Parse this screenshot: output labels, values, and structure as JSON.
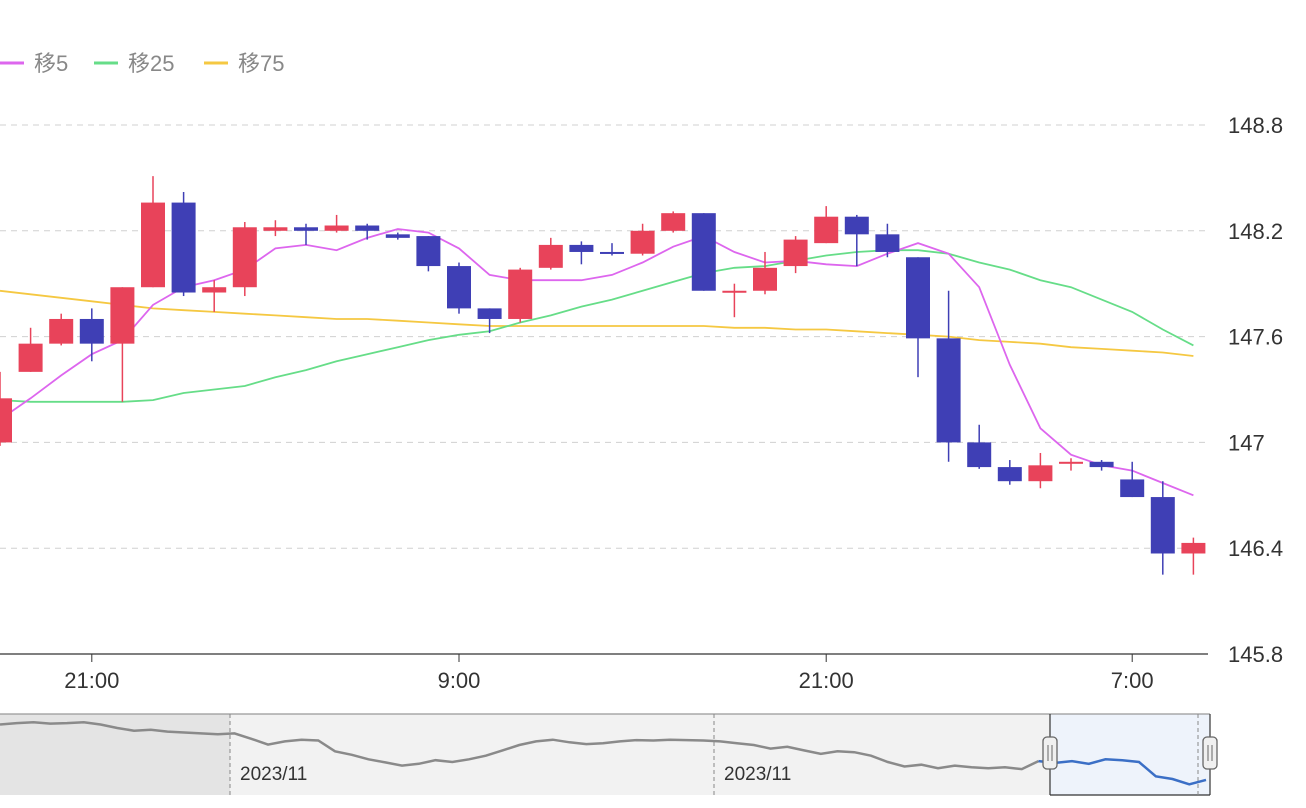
{
  "chart_data": {
    "type": "candlestick",
    "legend": [
      {
        "label": "移5",
        "color": "#dd66ee"
      },
      {
        "label": "移25",
        "color": "#66dd88"
      },
      {
        "label": "移75",
        "color": "#f5c842"
      }
    ],
    "y_ticks": [
      "148.8",
      "148.2",
      "147.6",
      "147",
      "146.4",
      "145.8"
    ],
    "ylim": [
      145.8,
      149.2
    ],
    "x_ticks": [
      {
        "label": "21:00",
        "index": 3
      },
      {
        "label": "9:00",
        "index": 15
      },
      {
        "label": "21:00",
        "index": 27
      },
      {
        "label": "7:00",
        "index": 37
      }
    ],
    "colors": {
      "up": "#e8435a",
      "down": "#3f3fb5",
      "grid": "#d0d0d0"
    },
    "candles": [
      {
        "o": 147.0,
        "h": 147.4,
        "l": 146.98,
        "c": 147.25
      },
      {
        "o": 147.4,
        "h": 147.65,
        "l": 147.4,
        "c": 147.56
      },
      {
        "o": 147.56,
        "h": 147.73,
        "l": 147.55,
        "c": 147.7
      },
      {
        "o": 147.7,
        "h": 147.76,
        "l": 147.46,
        "c": 147.56
      },
      {
        "o": 147.56,
        "h": 147.88,
        "l": 147.23,
        "c": 147.88
      },
      {
        "o": 147.88,
        "h": 148.51,
        "l": 147.88,
        "c": 148.36
      },
      {
        "o": 148.36,
        "h": 148.42,
        "l": 147.83,
        "c": 147.85
      },
      {
        "o": 147.85,
        "h": 147.92,
        "l": 147.74,
        "c": 147.88
      },
      {
        "o": 147.88,
        "h": 148.25,
        "l": 147.83,
        "c": 148.22
      },
      {
        "o": 148.2,
        "h": 148.26,
        "l": 148.17,
        "c": 148.22
      },
      {
        "o": 148.22,
        "h": 148.24,
        "l": 148.12,
        "c": 148.2
      },
      {
        "o": 148.2,
        "h": 148.29,
        "l": 148.19,
        "c": 148.23
      },
      {
        "o": 148.23,
        "h": 148.24,
        "l": 148.15,
        "c": 148.2
      },
      {
        "o": 148.18,
        "h": 148.19,
        "l": 148.15,
        "c": 148.16
      },
      {
        "o": 148.17,
        "h": 148.17,
        "l": 147.97,
        "c": 148.0
      },
      {
        "o": 148.0,
        "h": 148.02,
        "l": 147.73,
        "c": 147.76
      },
      {
        "o": 147.76,
        "h": 147.76,
        "l": 147.62,
        "c": 147.7
      },
      {
        "o": 147.7,
        "h": 147.99,
        "l": 147.68,
        "c": 147.98
      },
      {
        "o": 147.99,
        "h": 148.16,
        "l": 147.98,
        "c": 148.12
      },
      {
        "o": 148.12,
        "h": 148.14,
        "l": 148.01,
        "c": 148.08
      },
      {
        "o": 148.08,
        "h": 148.13,
        "l": 148.06,
        "c": 148.07
      },
      {
        "o": 148.07,
        "h": 148.24,
        "l": 148.06,
        "c": 148.2
      },
      {
        "o": 148.2,
        "h": 148.31,
        "l": 148.19,
        "c": 148.3
      },
      {
        "o": 148.3,
        "h": 148.3,
        "l": 147.86,
        "c": 147.86
      },
      {
        "o": 147.86,
        "h": 147.9,
        "l": 147.71,
        "c": 147.86
      },
      {
        "o": 147.86,
        "h": 148.08,
        "l": 147.84,
        "c": 147.99
      },
      {
        "o": 148.0,
        "h": 148.17,
        "l": 147.96,
        "c": 148.15
      },
      {
        "o": 148.13,
        "h": 148.34,
        "l": 148.13,
        "c": 148.28
      },
      {
        "o": 148.28,
        "h": 148.29,
        "l": 148.0,
        "c": 148.18
      },
      {
        "o": 148.18,
        "h": 148.24,
        "l": 148.05,
        "c": 148.08
      },
      {
        "o": 148.05,
        "h": 148.05,
        "l": 147.37,
        "c": 147.59
      },
      {
        "o": 147.59,
        "h": 147.86,
        "l": 146.89,
        "c": 147.0
      },
      {
        "o": 147.0,
        "h": 147.1,
        "l": 146.85,
        "c": 146.86
      },
      {
        "o": 146.86,
        "h": 146.9,
        "l": 146.76,
        "c": 146.78
      },
      {
        "o": 146.78,
        "h": 146.94,
        "l": 146.74,
        "c": 146.87
      },
      {
        "o": 146.89,
        "h": 146.91,
        "l": 146.84,
        "c": 146.89
      },
      {
        "o": 146.89,
        "h": 146.9,
        "l": 146.84,
        "c": 146.86
      },
      {
        "o": 146.79,
        "h": 146.89,
        "l": 146.69,
        "c": 146.69
      },
      {
        "o": 146.69,
        "h": 146.78,
        "l": 146.25,
        "c": 146.37
      },
      {
        "o": 146.37,
        "h": 146.46,
        "l": 146.25,
        "c": 146.43
      }
    ],
    "ma5": [
      147.13,
      147.25,
      147.38,
      147.5,
      147.58,
      147.78,
      147.88,
      147.92,
      147.98,
      148.1,
      148.12,
      148.09,
      148.16,
      148.21,
      148.19,
      148.1,
      147.95,
      147.92,
      147.92,
      147.92,
      147.95,
      148.02,
      148.11,
      148.17,
      148.08,
      148.02,
      148.03,
      148.01,
      148.0,
      148.07,
      148.13,
      148.07,
      147.88,
      147.44,
      147.08,
      146.93,
      146.87,
      146.84,
      146.77,
      146.7
    ],
    "ma25": [
      147.24,
      147.23,
      147.23,
      147.23,
      147.23,
      147.24,
      147.28,
      147.3,
      147.32,
      147.37,
      147.41,
      147.46,
      147.5,
      147.54,
      147.58,
      147.61,
      147.63,
      147.68,
      147.72,
      147.77,
      147.81,
      147.86,
      147.91,
      147.96,
      147.99,
      148.0,
      148.03,
      148.06,
      148.08,
      148.09,
      148.09,
      148.07,
      148.02,
      147.98,
      147.92,
      147.88,
      147.81,
      147.74,
      147.64,
      147.55
    ],
    "ma75": [
      147.86,
      147.84,
      147.82,
      147.8,
      147.78,
      147.76,
      147.75,
      147.74,
      147.73,
      147.72,
      147.71,
      147.7,
      147.7,
      147.69,
      147.68,
      147.67,
      147.66,
      147.66,
      147.66,
      147.66,
      147.66,
      147.66,
      147.66,
      147.66,
      147.65,
      147.65,
      147.64,
      147.64,
      147.63,
      147.62,
      147.61,
      147.6,
      147.58,
      147.57,
      147.56,
      147.54,
      147.53,
      147.52,
      147.51,
      147.49
    ],
    "navigator": {
      "date_labels": [
        "2023/11",
        "2023/11"
      ],
      "series": [
        148.9,
        148.93,
        148.95,
        148.92,
        148.93,
        148.95,
        148.9,
        148.82,
        148.76,
        148.78,
        148.74,
        148.72,
        148.7,
        148.68,
        148.7,
        148.58,
        148.45,
        148.52,
        148.56,
        148.54,
        148.3,
        148.22,
        148.12,
        148.05,
        147.98,
        148.02,
        148.1,
        148.06,
        148.12,
        148.2,
        148.32,
        148.44,
        148.52,
        148.56,
        148.5,
        148.46,
        148.48,
        148.52,
        148.55,
        148.54,
        148.56,
        148.55,
        148.54,
        148.52,
        148.48,
        148.44,
        148.36,
        148.4,
        148.32,
        148.24,
        148.3,
        148.28,
        148.2,
        148.06,
        147.96,
        148.0,
        147.92,
        147.98,
        147.94,
        147.92,
        147.94,
        147.9,
        148.08,
        148.04,
        148.08,
        148.02,
        148.12,
        148.1,
        148.06,
        147.74,
        147.68,
        147.56,
        147.66
      ]
    }
  }
}
